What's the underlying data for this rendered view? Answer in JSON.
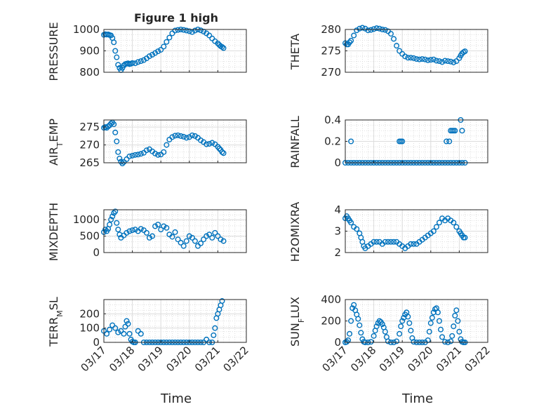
{
  "figure": {
    "title": "Figure 1 high",
    "xlabel": "Time",
    "marker_color": "#0072BD",
    "x_ticks": [
      "03/17",
      "03/18",
      "03/19",
      "03/20",
      "03/21",
      "03/22"
    ]
  },
  "chart_data": [
    {
      "type": "scatter",
      "ylabel": "PRESSURE",
      "ylim": [
        800,
        1000
      ],
      "yticks": [
        800,
        900,
        1000
      ],
      "grid": true,
      "xlim": [
        0,
        5
      ],
      "series": [
        {
          "x": [
            0.0,
            0.05,
            0.1,
            0.15,
            0.2,
            0.25,
            0.3,
            0.35,
            0.4,
            0.45,
            0.5,
            0.55,
            0.6,
            0.65,
            0.7,
            0.75,
            0.8,
            0.85,
            0.9,
            0.95,
            1.0,
            1.1,
            1.2,
            1.3,
            1.4,
            1.5,
            1.6,
            1.7,
            1.8,
            1.9,
            2.0,
            2.1,
            2.2,
            2.3,
            2.4,
            2.5,
            2.6,
            2.7,
            2.8,
            2.9,
            3.0,
            3.1,
            3.2,
            3.3,
            3.4,
            3.5,
            3.6,
            3.7,
            3.8,
            3.9,
            4.0,
            4.05,
            4.1,
            4.15,
            4.2
          ],
          "y": [
            975,
            978,
            976,
            977,
            974,
            972,
            960,
            940,
            900,
            870,
            835,
            820,
            810,
            820,
            832,
            838,
            840,
            842,
            838,
            840,
            843,
            842,
            848,
            852,
            857,
            865,
            875,
            882,
            890,
            898,
            905,
            920,
            942,
            962,
            982,
            995,
            998,
            1000,
            998,
            995,
            992,
            988,
            995,
            1000,
            996,
            990,
            982,
            972,
            958,
            945,
            935,
            928,
            922,
            918,
            913
          ]
        }
      ]
    },
    {
      "type": "scatter",
      "ylabel": "THETA",
      "ylim": [
        270,
        280
      ],
      "yticks": [
        270,
        275,
        280
      ],
      "grid": true,
      "xlim": [
        0,
        5
      ],
      "series": [
        {
          "x": [
            0.0,
            0.05,
            0.1,
            0.15,
            0.2,
            0.3,
            0.4,
            0.5,
            0.6,
            0.7,
            0.8,
            0.9,
            1.0,
            1.1,
            1.2,
            1.3,
            1.4,
            1.5,
            1.6,
            1.7,
            1.8,
            1.9,
            2.0,
            2.1,
            2.2,
            2.3,
            2.4,
            2.5,
            2.6,
            2.7,
            2.8,
            2.9,
            3.0,
            3.1,
            3.2,
            3.3,
            3.4,
            3.5,
            3.6,
            3.7,
            3.8,
            3.9,
            4.0,
            4.05,
            4.1,
            4.15,
            4.2
          ],
          "y": [
            276.8,
            276.5,
            276.5,
            277.0,
            277.4,
            278.6,
            279.8,
            280.2,
            280.4,
            280.2,
            279.8,
            279.9,
            280.1,
            280.3,
            280.2,
            280.0,
            279.9,
            279.6,
            279.0,
            277.8,
            276.2,
            275.0,
            274.3,
            273.7,
            273.4,
            273.4,
            273.3,
            273.1,
            273.0,
            273.1,
            273.0,
            272.8,
            272.9,
            273.0,
            272.7,
            272.6,
            272.4,
            272.7,
            272.6,
            272.5,
            272.3,
            272.6,
            273.3,
            273.9,
            274.4,
            274.7,
            274.9
          ]
        }
      ]
    },
    {
      "type": "scatter",
      "ylabel": "AIR_TEMP",
      "ylim": [
        265,
        277
      ],
      "yticks": [
        265,
        270,
        275
      ],
      "grid": true,
      "xlim": [
        0,
        5
      ],
      "series": [
        {
          "x": [
            0.0,
            0.05,
            0.1,
            0.15,
            0.2,
            0.25,
            0.3,
            0.35,
            0.4,
            0.45,
            0.5,
            0.55,
            0.6,
            0.65,
            0.7,
            0.8,
            0.9,
            1.0,
            1.1,
            1.2,
            1.3,
            1.4,
            1.5,
            1.6,
            1.7,
            1.8,
            1.9,
            2.0,
            2.1,
            2.2,
            2.3,
            2.4,
            2.5,
            2.6,
            2.7,
            2.8,
            2.9,
            3.0,
            3.1,
            3.2,
            3.3,
            3.4,
            3.5,
            3.6,
            3.7,
            3.8,
            3.9,
            4.0,
            4.05,
            4.1,
            4.15,
            4.2
          ],
          "y": [
            274.8,
            275.0,
            274.8,
            275.2,
            275.5,
            276.0,
            276.3,
            275.8,
            273.5,
            271.0,
            268.0,
            266.2,
            265.3,
            264.8,
            265.2,
            266.0,
            266.8,
            267.0,
            267.2,
            267.3,
            267.5,
            267.8,
            268.5,
            268.8,
            268.2,
            267.6,
            267.2,
            267.3,
            268.0,
            270.0,
            271.5,
            272.2,
            272.6,
            272.7,
            272.5,
            272.3,
            272.0,
            272.2,
            272.7,
            272.5,
            272.0,
            271.3,
            270.8,
            270.2,
            270.3,
            270.6,
            270.2,
            269.5,
            269.0,
            268.6,
            268.0,
            267.7
          ]
        }
      ]
    },
    {
      "type": "scatter",
      "ylabel": "RAINFALL",
      "ylim": [
        0,
        0.4
      ],
      "yticks": [
        0,
        0.2,
        0.4
      ],
      "grid": true,
      "xlim": [
        0,
        5
      ],
      "series": [
        {
          "x": [
            0.0,
            0.1,
            0.2,
            0.3,
            0.4,
            0.5,
            0.6,
            0.7,
            0.8,
            0.9,
            1.0,
            1.1,
            1.2,
            1.3,
            1.4,
            1.5,
            1.6,
            1.7,
            1.8,
            1.9,
            2.0,
            2.1,
            2.2,
            2.3,
            2.4,
            2.5,
            2.6,
            2.7,
            2.8,
            2.9,
            3.0,
            3.1,
            3.2,
            3.3,
            3.4,
            3.5,
            3.6,
            3.7,
            3.8,
            3.9,
            4.0,
            4.1,
            4.2,
            0.2,
            1.9,
            1.95,
            2.0,
            3.55,
            3.65,
            3.7,
            3.75,
            3.8,
            3.85,
            4.05,
            4.1
          ],
          "y": [
            0,
            0,
            0,
            0,
            0,
            0,
            0,
            0,
            0,
            0,
            0,
            0,
            0,
            0,
            0,
            0,
            0,
            0,
            0,
            0,
            0,
            0,
            0,
            0,
            0,
            0,
            0,
            0,
            0,
            0,
            0,
            0,
            0,
            0,
            0,
            0,
            0,
            0,
            0,
            0,
            0,
            0,
            0,
            0.2,
            0.2,
            0.2,
            0.2,
            0.2,
            0.2,
            0.3,
            0.3,
            0.3,
            0.3,
            0.4,
            0.3
          ]
        }
      ]
    },
    {
      "type": "scatter",
      "ylabel": "MIXDEPTH",
      "ylim": [
        0,
        1300
      ],
      "yticks": [
        0,
        500,
        1000
      ],
      "grid": true,
      "xlim": [
        0,
        5
      ],
      "series": [
        {
          "x": [
            0.0,
            0.05,
            0.1,
            0.15,
            0.2,
            0.25,
            0.3,
            0.35,
            0.4,
            0.45,
            0.5,
            0.55,
            0.6,
            0.7,
            0.8,
            0.9,
            1.0,
            1.1,
            1.2,
            1.3,
            1.4,
            1.5,
            1.6,
            1.7,
            1.8,
            1.9,
            2.0,
            2.1,
            2.2,
            2.3,
            2.4,
            2.5,
            2.6,
            2.7,
            2.8,
            2.9,
            3.0,
            3.1,
            3.2,
            3.3,
            3.4,
            3.5,
            3.6,
            3.7,
            3.8,
            3.9,
            4.0,
            4.1,
            4.2
          ],
          "y": [
            620,
            700,
            650,
            720,
            850,
            1000,
            1100,
            1200,
            1250,
            900,
            700,
            550,
            450,
            520,
            600,
            650,
            680,
            700,
            650,
            720,
            680,
            600,
            450,
            500,
            800,
            850,
            700,
            800,
            750,
            550,
            480,
            620,
            400,
            300,
            200,
            350,
            500,
            450,
            350,
            200,
            280,
            400,
            500,
            550,
            450,
            600,
            500,
            400,
            350
          ]
        }
      ]
    },
    {
      "type": "scatter",
      "ylabel": "H2OMIXRA",
      "ylim": [
        2,
        4
      ],
      "yticks": [
        2,
        3,
        4
      ],
      "grid": true,
      "xlim": [
        0,
        5
      ],
      "series": [
        {
          "x": [
            0.0,
            0.05,
            0.1,
            0.15,
            0.2,
            0.3,
            0.4,
            0.5,
            0.55,
            0.6,
            0.65,
            0.7,
            0.8,
            0.9,
            1.0,
            1.1,
            1.2,
            1.3,
            1.4,
            1.5,
            1.6,
            1.7,
            1.8,
            1.9,
            2.0,
            2.1,
            2.2,
            2.3,
            2.4,
            2.5,
            2.6,
            2.7,
            2.8,
            2.9,
            3.0,
            3.1,
            3.2,
            3.3,
            3.4,
            3.5,
            3.6,
            3.7,
            3.8,
            3.9,
            4.0,
            4.05,
            4.1,
            4.15,
            4.2
          ],
          "y": [
            3.6,
            3.7,
            3.6,
            3.5,
            3.4,
            3.2,
            3.1,
            2.9,
            2.7,
            2.5,
            2.3,
            2.2,
            2.3,
            2.4,
            2.5,
            2.5,
            2.5,
            2.4,
            2.5,
            2.5,
            2.5,
            2.5,
            2.5,
            2.4,
            2.3,
            2.2,
            2.3,
            2.4,
            2.4,
            2.4,
            2.5,
            2.6,
            2.7,
            2.8,
            2.9,
            3.0,
            3.2,
            3.4,
            3.6,
            3.5,
            3.6,
            3.5,
            3.4,
            3.2,
            3.0,
            2.9,
            2.8,
            2.7,
            2.7
          ]
        }
      ]
    },
    {
      "type": "scatter",
      "ylabel": "TERR_MSL",
      "ylim": [
        0,
        300
      ],
      "yticks": [
        0,
        100,
        200
      ],
      "grid": true,
      "xlim": [
        0,
        5
      ],
      "series": [
        {
          "x": [
            0.0,
            0.1,
            0.2,
            0.3,
            0.4,
            0.5,
            0.6,
            0.7,
            0.75,
            0.8,
            0.85,
            0.9,
            0.95,
            1.0,
            1.05,
            1.1,
            1.2,
            1.3,
            1.4,
            1.5,
            1.6,
            1.7,
            1.8,
            1.9,
            2.0,
            2.1,
            2.2,
            2.3,
            2.4,
            2.5,
            2.6,
            2.7,
            2.8,
            2.9,
            3.0,
            3.1,
            3.2,
            3.3,
            3.4,
            3.5,
            3.6,
            3.7,
            3.8,
            3.85,
            3.9,
            3.95,
            4.0,
            4.05,
            4.1,
            4.15
          ],
          "y": [
            80,
            60,
            90,
            120,
            100,
            70,
            80,
            60,
            110,
            150,
            130,
            60,
            20,
            5,
            0,
            0,
            80,
            60,
            0,
            0,
            0,
            0,
            0,
            0,
            0,
            0,
            0,
            0,
            0,
            0,
            0,
            0,
            0,
            0,
            0,
            0,
            0,
            0,
            0,
            0,
            20,
            0,
            0,
            50,
            100,
            170,
            200,
            230,
            260,
            290
          ]
        }
      ]
    },
    {
      "type": "scatter",
      "ylabel": "SUN_FLUX",
      "ylim": [
        0,
        400
      ],
      "yticks": [
        0,
        200,
        400
      ],
      "grid": true,
      "xlim": [
        0,
        5
      ],
      "series": [
        {
          "x": [
            0.0,
            0.05,
            0.1,
            0.15,
            0.2,
            0.25,
            0.3,
            0.35,
            0.4,
            0.45,
            0.5,
            0.55,
            0.6,
            0.65,
            0.7,
            0.8,
            0.9,
            1.0,
            1.05,
            1.1,
            1.15,
            1.2,
            1.25,
            1.3,
            1.35,
            1.4,
            1.45,
            1.5,
            1.6,
            1.7,
            1.8,
            1.9,
            1.95,
            2.0,
            2.05,
            2.1,
            2.15,
            2.2,
            2.25,
            2.3,
            2.35,
            2.4,
            2.5,
            2.6,
            2.7,
            2.8,
            2.9,
            2.95,
            3.0,
            3.05,
            3.1,
            3.15,
            3.2,
            3.25,
            3.3,
            3.35,
            3.4,
            3.5,
            3.6,
            3.7,
            3.75,
            3.8,
            3.85,
            3.9,
            3.95,
            4.0,
            4.05,
            4.1,
            4.15,
            4.2
          ],
          "y": [
            0,
            5,
            20,
            80,
            200,
            320,
            350,
            300,
            260,
            220,
            160,
            90,
            30,
            5,
            0,
            0,
            5,
            60,
            110,
            150,
            180,
            200,
            190,
            170,
            140,
            100,
            50,
            10,
            0,
            0,
            10,
            80,
            150,
            200,
            230,
            260,
            280,
            240,
            180,
            110,
            40,
            5,
            0,
            0,
            0,
            0,
            20,
            100,
            180,
            230,
            280,
            310,
            320,
            280,
            200,
            120,
            50,
            5,
            0,
            10,
            60,
            150,
            250,
            300,
            200,
            100,
            30,
            5,
            0,
            0
          ]
        }
      ]
    }
  ]
}
